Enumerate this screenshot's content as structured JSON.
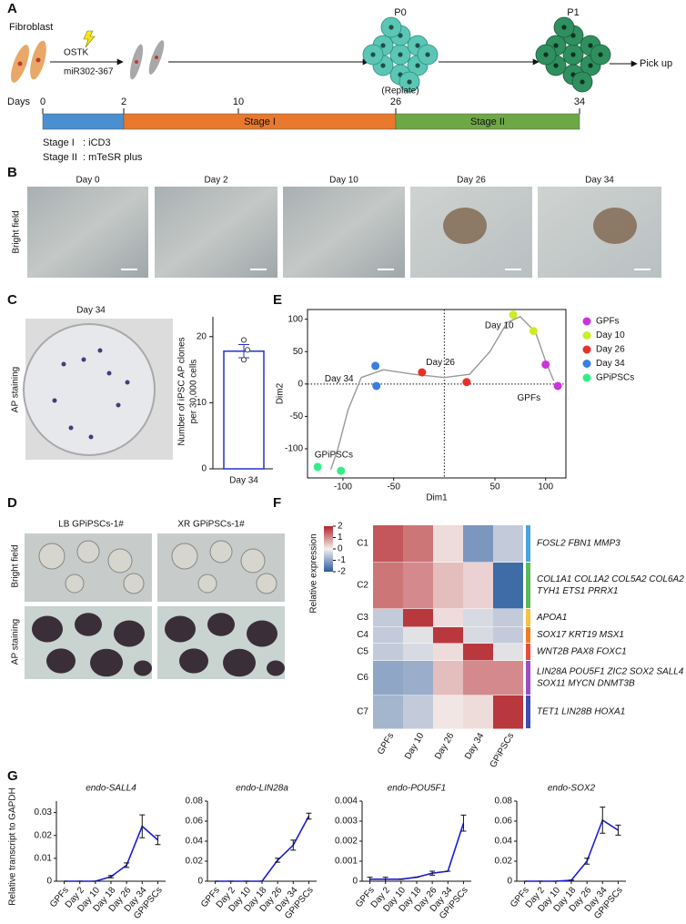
{
  "panel_labels": [
    "A",
    "B",
    "C",
    "D",
    "E",
    "F",
    "G"
  ],
  "schematic": {
    "fibroblast": "Fibroblast",
    "factors": [
      "OSTK",
      "miR302-367"
    ],
    "p0": "P0",
    "replate": "(Replate)",
    "p1": "P1",
    "pick_up": "Pick up",
    "days_label": "Days",
    "days": [
      0,
      2,
      10,
      26,
      34
    ],
    "stages": [
      "Stage I",
      "Stage II"
    ],
    "stage_colors": [
      "#4a8fd0",
      "#e8782c",
      "#6ea846"
    ],
    "media": [
      "Stage I   : iCD3",
      "Stage II  : mTeSR plus"
    ]
  },
  "bright_field": {
    "row_label": "Bright field",
    "days": [
      "Day 0",
      "Day 2",
      "Day 10",
      "Day 26",
      "Day 34"
    ]
  },
  "ap_image": {
    "title": "Day 34",
    "row_label": "AP staining"
  },
  "d_panel": {
    "columns": [
      "LB GPiPSCs-1#",
      "XR GPiPSCs-1#"
    ],
    "rows": [
      "Bright field",
      "AP staining"
    ]
  },
  "heatmap": {
    "colorbar_label": "Relative expression",
    "colorbar_ticks": [
      2,
      1,
      0,
      -1,
      -2
    ],
    "columns": [
      "GPFs",
      "Day 10",
      "Day 26",
      "Day 34",
      "GPiPSCs"
    ],
    "clusters": [
      {
        "name": "C1",
        "genes": [
          "FOSL2 FBN1 MMP3"
        ],
        "color": "#4aa3df",
        "values": [
          1.5,
          1.2,
          0.2,
          -1.2,
          -0.5
        ]
      },
      {
        "name": "C2",
        "genes": [
          "COL1A1 COL1A2 COL5A2 COL6A2",
          "TYH1 ETS1 PRRX1"
        ],
        "color": "#5cb85c",
        "values": [
          1.2,
          1.0,
          0.5,
          0.3,
          -1.8
        ]
      },
      {
        "name": "C3",
        "genes": [
          "APOA1"
        ],
        "color": "#f5c242",
        "values": [
          -0.5,
          1.8,
          0.2,
          -0.3,
          -0.5
        ]
      },
      {
        "name": "C4",
        "genes": [
          "SOX17 KRT19 MSX1"
        ],
        "color": "#f07f1e",
        "values": [
          -0.5,
          -0.2,
          1.8,
          -0.3,
          -0.5
        ]
      },
      {
        "name": "C5",
        "genes": [
          "WNT2B PAX8 FOXC1"
        ],
        "color": "#e84c3d",
        "values": [
          -0.5,
          -0.3,
          0.2,
          1.8,
          -0.2
        ]
      },
      {
        "name": "C6",
        "genes": [
          "LIN28A POU5F1 ZIC2 SOX2 SALL4",
          "SOX11 MYCN DNMT3B"
        ],
        "color": "#9b4fc2",
        "values": [
          -1.0,
          -0.9,
          0.5,
          1.0,
          1.0
        ]
      },
      {
        "name": "C7",
        "genes": [
          "TET1 LIN28B HOXA1"
        ],
        "color": "#3d4fb0",
        "values": [
          -0.8,
          -0.5,
          0.1,
          0.2,
          1.8
        ]
      }
    ]
  },
  "g_ylabel": "Relative transcript to GAPDH",
  "chart_data": [
    {
      "type": "bar",
      "categories": [
        "Day 34"
      ],
      "values": [
        17.8
      ],
      "errors": [
        1.0
      ],
      "points": [
        19.5,
        18,
        16.5
      ],
      "ylabel": [
        "Number of iPSC AP clones",
        "per 30,000 cells"
      ],
      "ylim": [
        0,
        23
      ],
      "yticks": [
        0,
        10,
        20
      ],
      "color": "#2233cc"
    },
    {
      "type": "scatter",
      "xlabel": "Dim1",
      "ylabel": "Dim2",
      "xlim": [
        -135,
        120
      ],
      "ylim": [
        -145,
        115
      ],
      "xticks": [
        -100,
        -50,
        50,
        100
      ],
      "yticks": [
        -100,
        -50,
        0,
        50,
        100
      ],
      "annotations": [
        "Day 10",
        "Day 26",
        "Day 34",
        "GPFs",
        "GPiPSCs"
      ],
      "series": [
        {
          "name": "GPFs",
          "color": "#cc33dd",
          "x": [
            100,
            112
          ],
          "values": [
            30,
            -3
          ]
        },
        {
          "name": "Day 10",
          "color": "#ccee22",
          "x": [
            68,
            88
          ],
          "values": [
            107,
            82
          ]
        },
        {
          "name": "Day 26",
          "color": "#e8302a",
          "x": [
            -22,
            22
          ],
          "values": [
            18,
            3
          ]
        },
        {
          "name": "Day 34",
          "color": "#3a7de0",
          "x": [
            -68,
            -67
          ],
          "values": [
            28,
            -3
          ]
        },
        {
          "name": "GPiPSCs",
          "color": "#33ee88",
          "x": [
            -125,
            -102
          ],
          "values": [
            -128,
            -134
          ]
        }
      ]
    },
    {
      "type": "line",
      "title": "endo-SALL4",
      "categories": [
        "GPFs",
        "Day 2",
        "Day 10",
        "Day 18",
        "Day 26",
        "Day 34",
        "GPiPSCs"
      ],
      "values": [
        0,
        0,
        0,
        0.002,
        0.007,
        0.024,
        0.018
      ],
      "errors": [
        0,
        0,
        0,
        0.0005,
        0.001,
        0.005,
        0.002
      ],
      "ylim": [
        0,
        0.035
      ],
      "yticks": [
        0,
        0.01,
        0.02,
        0.03
      ],
      "color": "#1a1adc"
    },
    {
      "type": "line",
      "title": "endo-LIN28a",
      "categories": [
        "GPFs",
        "Day 2",
        "Day 10",
        "Day 18",
        "Day 26",
        "Day 34",
        "GPiPSCs"
      ],
      "values": [
        0,
        0,
        0,
        0,
        0.021,
        0.036,
        0.065
      ],
      "errors": [
        0,
        0,
        0,
        0,
        0.002,
        0.005,
        0.003
      ],
      "ylim": [
        0,
        0.08
      ],
      "yticks": [
        0,
        0.02,
        0.04,
        0.06,
        0.08
      ],
      "color": "#1a1adc"
    },
    {
      "type": "line",
      "title": "endo-POU5F1",
      "categories": [
        "GPFs",
        "Day 2",
        "Day 10",
        "Day 18",
        "Day 26",
        "Day 34",
        "GPiPSCs"
      ],
      "values": [
        0.0001,
        0.0001,
        0.0001,
        0.0002,
        0.0004,
        0.0005,
        0.0029
      ],
      "errors": [
        0.0001,
        0.0001,
        0,
        0,
        0.0001,
        0,
        0.0004
      ],
      "ylim": [
        0,
        0.004
      ],
      "yticks": [
        0,
        0.001,
        0.002,
        0.003,
        0.004
      ],
      "color": "#1a1adc"
    },
    {
      "type": "line",
      "title": "endo-SOX2",
      "categories": [
        "GPFs",
        "Day 2",
        "Day 10",
        "Day 18",
        "Day 26",
        "Day 34",
        "GPiPSCs"
      ],
      "values": [
        0,
        0,
        0,
        0.001,
        0.02,
        0.061,
        0.051
      ],
      "errors": [
        0,
        0,
        0,
        0,
        0.003,
        0.013,
        0.005
      ],
      "ylim": [
        0,
        0.08
      ],
      "yticks": [
        0,
        0.02,
        0.04,
        0.06,
        0.08
      ],
      "color": "#1a1adc"
    }
  ]
}
